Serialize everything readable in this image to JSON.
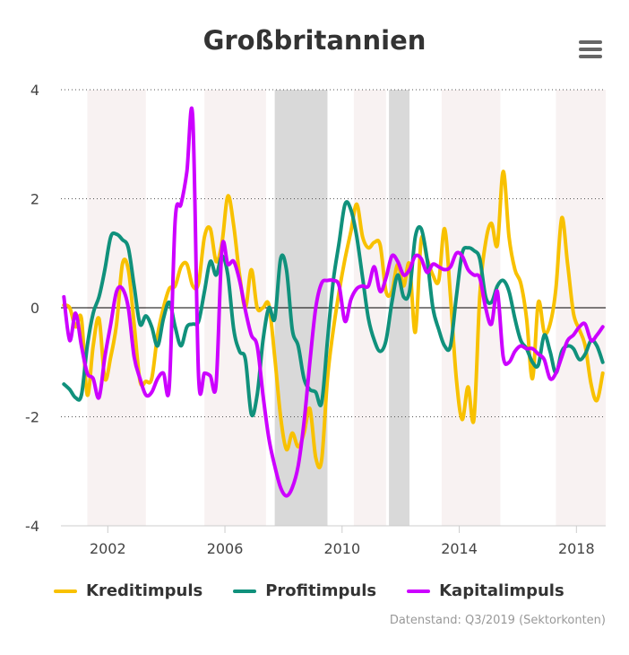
{
  "chart_data": {
    "type": "line",
    "title": "Großbritannien",
    "xlim": [
      2000.4,
      2019.0
    ],
    "ylim": [
      -4,
      4
    ],
    "x_ticks": [
      2002,
      2006,
      2010,
      2014,
      2018
    ],
    "y_ticks": [
      4,
      2,
      0,
      -2,
      -4
    ],
    "grid": "horizontal dotted",
    "legend": "bottom",
    "bands_light": [
      [
        2001.3,
        2003.3
      ],
      [
        2005.3,
        2007.4
      ],
      [
        2010.4,
        2011.5
      ],
      [
        2013.4,
        2015.4
      ],
      [
        2017.3,
        2019.0
      ]
    ],
    "bands_dark": [
      [
        2007.7,
        2009.5
      ],
      [
        2011.6,
        2012.3
      ]
    ],
    "series": [
      {
        "name": "Kreditimpuls",
        "color": "#f8c100",
        "points": [
          [
            2000.5,
            0.05
          ],
          [
            2000.7,
            0.0
          ],
          [
            2000.9,
            -0.35
          ],
          [
            2001.1,
            -0.2
          ],
          [
            2001.3,
            -1.6
          ],
          [
            2001.5,
            -0.7
          ],
          [
            2001.7,
            -0.2
          ],
          [
            2001.9,
            -1.3
          ],
          [
            2002.1,
            -0.9
          ],
          [
            2002.3,
            -0.3
          ],
          [
            2002.5,
            0.8
          ],
          [
            2002.7,
            0.7
          ],
          [
            2002.9,
            -0.3
          ],
          [
            2003.1,
            -1.35
          ],
          [
            2003.3,
            -1.35
          ],
          [
            2003.5,
            -1.3
          ],
          [
            2003.7,
            -0.5
          ],
          [
            2003.9,
            0.0
          ],
          [
            2004.1,
            0.35
          ],
          [
            2004.3,
            0.4
          ],
          [
            2004.5,
            0.75
          ],
          [
            2004.7,
            0.8
          ],
          [
            2004.9,
            0.4
          ],
          [
            2005.1,
            0.45
          ],
          [
            2005.3,
            1.3
          ],
          [
            2005.5,
            1.45
          ],
          [
            2005.7,
            0.85
          ],
          [
            2005.9,
            1.2
          ],
          [
            2006.1,
            2.05
          ],
          [
            2006.3,
            1.5
          ],
          [
            2006.5,
            0.6
          ],
          [
            2006.7,
            0.0
          ],
          [
            2006.9,
            0.7
          ],
          [
            2007.1,
            0.0
          ],
          [
            2007.3,
            0.0
          ],
          [
            2007.5,
            0.05
          ],
          [
            2007.7,
            -0.9
          ],
          [
            2007.9,
            -2.0
          ],
          [
            2008.1,
            -2.6
          ],
          [
            2008.3,
            -2.3
          ],
          [
            2008.5,
            -2.55
          ],
          [
            2008.7,
            -2.3
          ],
          [
            2008.9,
            -1.85
          ],
          [
            2009.1,
            -2.75
          ],
          [
            2009.3,
            -2.8
          ],
          [
            2009.5,
            -1.3
          ],
          [
            2009.7,
            -0.4
          ],
          [
            2009.9,
            0.3
          ],
          [
            2010.1,
            0.9
          ],
          [
            2010.3,
            1.4
          ],
          [
            2010.5,
            1.9
          ],
          [
            2010.7,
            1.3
          ],
          [
            2010.9,
            1.1
          ],
          [
            2011.1,
            1.2
          ],
          [
            2011.3,
            1.15
          ],
          [
            2011.5,
            0.3
          ],
          [
            2011.7,
            0.3
          ],
          [
            2011.9,
            0.8
          ],
          [
            2012.1,
            0.4
          ],
          [
            2012.3,
            0.8
          ],
          [
            2012.5,
            -0.45
          ],
          [
            2012.7,
            1.25
          ],
          [
            2012.9,
            0.9
          ],
          [
            2013.1,
            0.6
          ],
          [
            2013.3,
            0.5
          ],
          [
            2013.5,
            1.45
          ],
          [
            2013.7,
            0.2
          ],
          [
            2013.9,
            -1.3
          ],
          [
            2014.1,
            -2.05
          ],
          [
            2014.3,
            -1.45
          ],
          [
            2014.5,
            -2.05
          ],
          [
            2014.7,
            0.2
          ],
          [
            2014.9,
            1.2
          ],
          [
            2015.1,
            1.55
          ],
          [
            2015.3,
            1.15
          ],
          [
            2015.5,
            2.5
          ],
          [
            2015.7,
            1.3
          ],
          [
            2015.9,
            0.7
          ],
          [
            2016.1,
            0.45
          ],
          [
            2016.3,
            -0.2
          ],
          [
            2016.5,
            -1.3
          ],
          [
            2016.7,
            0.1
          ],
          [
            2016.9,
            -0.45
          ],
          [
            2017.1,
            -0.3
          ],
          [
            2017.3,
            0.35
          ],
          [
            2017.5,
            1.65
          ],
          [
            2017.7,
            0.8
          ],
          [
            2017.9,
            -0.1
          ],
          [
            2018.1,
            -0.4
          ],
          [
            2018.3,
            -0.7
          ],
          [
            2018.5,
            -1.4
          ],
          [
            2018.7,
            -1.7
          ],
          [
            2018.9,
            -1.2
          ]
        ]
      },
      {
        "name": "Profitimpuls",
        "color": "#10917c",
        "points": [
          [
            2000.5,
            -1.4
          ],
          [
            2000.7,
            -1.5
          ],
          [
            2000.9,
            -1.65
          ],
          [
            2001.1,
            -1.6
          ],
          [
            2001.3,
            -0.7
          ],
          [
            2001.5,
            -0.1
          ],
          [
            2001.7,
            0.2
          ],
          [
            2001.9,
            0.7
          ],
          [
            2002.1,
            1.3
          ],
          [
            2002.3,
            1.35
          ],
          [
            2002.5,
            1.25
          ],
          [
            2002.7,
            1.1
          ],
          [
            2002.9,
            0.4
          ],
          [
            2003.1,
            -0.3
          ],
          [
            2003.3,
            -0.15
          ],
          [
            2003.5,
            -0.35
          ],
          [
            2003.7,
            -0.7
          ],
          [
            2003.9,
            -0.2
          ],
          [
            2004.1,
            0.1
          ],
          [
            2004.3,
            -0.35
          ],
          [
            2004.5,
            -0.7
          ],
          [
            2004.7,
            -0.35
          ],
          [
            2004.9,
            -0.3
          ],
          [
            2005.1,
            -0.25
          ],
          [
            2005.3,
            0.3
          ],
          [
            2005.5,
            0.85
          ],
          [
            2005.7,
            0.6
          ],
          [
            2005.9,
            0.95
          ],
          [
            2006.1,
            0.6
          ],
          [
            2006.3,
            -0.4
          ],
          [
            2006.5,
            -0.8
          ],
          [
            2006.7,
            -0.95
          ],
          [
            2006.9,
            -1.95
          ],
          [
            2007.1,
            -1.6
          ],
          [
            2007.3,
            -0.6
          ],
          [
            2007.5,
            0.0
          ],
          [
            2007.7,
            -0.2
          ],
          [
            2007.9,
            0.9
          ],
          [
            2008.1,
            0.7
          ],
          [
            2008.3,
            -0.4
          ],
          [
            2008.5,
            -0.7
          ],
          [
            2008.7,
            -1.3
          ],
          [
            2008.9,
            -1.5
          ],
          [
            2009.1,
            -1.55
          ],
          [
            2009.3,
            -1.75
          ],
          [
            2009.5,
            -0.6
          ],
          [
            2009.7,
            0.5
          ],
          [
            2009.9,
            1.2
          ],
          [
            2010.1,
            1.9
          ],
          [
            2010.3,
            1.8
          ],
          [
            2010.5,
            1.3
          ],
          [
            2010.7,
            0.55
          ],
          [
            2010.9,
            -0.2
          ],
          [
            2011.1,
            -0.6
          ],
          [
            2011.3,
            -0.8
          ],
          [
            2011.5,
            -0.6
          ],
          [
            2011.7,
            0.1
          ],
          [
            2011.9,
            0.6
          ],
          [
            2012.1,
            0.2
          ],
          [
            2012.3,
            0.3
          ],
          [
            2012.5,
            1.3
          ],
          [
            2012.7,
            1.45
          ],
          [
            2012.9,
            0.9
          ],
          [
            2013.1,
            0.0
          ],
          [
            2013.3,
            -0.4
          ],
          [
            2013.5,
            -0.7
          ],
          [
            2013.7,
            -0.7
          ],
          [
            2013.9,
            0.2
          ],
          [
            2014.1,
            1.0
          ],
          [
            2014.3,
            1.1
          ],
          [
            2014.5,
            1.05
          ],
          [
            2014.7,
            0.9
          ],
          [
            2014.9,
            0.2
          ],
          [
            2015.1,
            0.1
          ],
          [
            2015.3,
            0.4
          ],
          [
            2015.5,
            0.5
          ],
          [
            2015.7,
            0.3
          ],
          [
            2015.9,
            -0.2
          ],
          [
            2016.1,
            -0.6
          ],
          [
            2016.3,
            -0.75
          ],
          [
            2016.5,
            -1.0
          ],
          [
            2016.7,
            -1.05
          ],
          [
            2016.9,
            -0.5
          ],
          [
            2017.1,
            -0.8
          ],
          [
            2017.3,
            -1.2
          ],
          [
            2017.5,
            -0.8
          ],
          [
            2017.7,
            -0.7
          ],
          [
            2017.9,
            -0.75
          ],
          [
            2018.1,
            -0.95
          ],
          [
            2018.3,
            -0.85
          ],
          [
            2018.5,
            -0.6
          ],
          [
            2018.7,
            -0.7
          ],
          [
            2018.9,
            -1.0
          ]
        ]
      },
      {
        "name": "Kapitalimpuls",
        "color": "#cc00ff",
        "points": [
          [
            2000.5,
            0.2
          ],
          [
            2000.7,
            -0.6
          ],
          [
            2000.9,
            -0.1
          ],
          [
            2001.1,
            -0.7
          ],
          [
            2001.3,
            -1.2
          ],
          [
            2001.5,
            -1.3
          ],
          [
            2001.7,
            -1.65
          ],
          [
            2001.9,
            -0.9
          ],
          [
            2002.1,
            -0.3
          ],
          [
            2002.3,
            0.3
          ],
          [
            2002.5,
            0.35
          ],
          [
            2002.7,
            0.0
          ],
          [
            2002.9,
            -0.9
          ],
          [
            2003.1,
            -1.3
          ],
          [
            2003.3,
            -1.6
          ],
          [
            2003.5,
            -1.55
          ],
          [
            2003.7,
            -1.3
          ],
          [
            2003.9,
            -1.2
          ],
          [
            2004.1,
            -1.45
          ],
          [
            2004.3,
            1.6
          ],
          [
            2004.5,
            1.9
          ],
          [
            2004.7,
            2.5
          ],
          [
            2004.9,
            3.5
          ],
          [
            2005.1,
            -1.25
          ],
          [
            2005.3,
            -1.2
          ],
          [
            2005.5,
            -1.25
          ],
          [
            2005.7,
            -1.4
          ],
          [
            2005.9,
            1.1
          ],
          [
            2006.1,
            0.8
          ],
          [
            2006.3,
            0.85
          ],
          [
            2006.5,
            0.5
          ],
          [
            2006.7,
            -0.05
          ],
          [
            2006.9,
            -0.5
          ],
          [
            2007.1,
            -0.7
          ],
          [
            2007.3,
            -1.6
          ],
          [
            2007.5,
            -2.4
          ],
          [
            2007.7,
            -2.9
          ],
          [
            2007.9,
            -3.3
          ],
          [
            2008.1,
            -3.45
          ],
          [
            2008.3,
            -3.3
          ],
          [
            2008.5,
            -2.9
          ],
          [
            2008.7,
            -2.1
          ],
          [
            2008.9,
            -1.0
          ],
          [
            2009.1,
            0.0
          ],
          [
            2009.3,
            0.45
          ],
          [
            2009.5,
            0.5
          ],
          [
            2009.7,
            0.5
          ],
          [
            2009.9,
            0.4
          ],
          [
            2010.1,
            -0.25
          ],
          [
            2010.3,
            0.15
          ],
          [
            2010.5,
            0.35
          ],
          [
            2010.7,
            0.4
          ],
          [
            2010.9,
            0.4
          ],
          [
            2011.1,
            0.75
          ],
          [
            2011.3,
            0.3
          ],
          [
            2011.5,
            0.55
          ],
          [
            2011.7,
            0.95
          ],
          [
            2011.9,
            0.85
          ],
          [
            2012.1,
            0.6
          ],
          [
            2012.3,
            0.7
          ],
          [
            2012.5,
            0.95
          ],
          [
            2012.7,
            0.9
          ],
          [
            2012.9,
            0.65
          ],
          [
            2013.1,
            0.8
          ],
          [
            2013.3,
            0.75
          ],
          [
            2013.5,
            0.7
          ],
          [
            2013.7,
            0.75
          ],
          [
            2013.9,
            1.0
          ],
          [
            2014.1,
            0.95
          ],
          [
            2014.3,
            0.7
          ],
          [
            2014.5,
            0.6
          ],
          [
            2014.7,
            0.55
          ],
          [
            2014.9,
            0.0
          ],
          [
            2015.1,
            -0.3
          ],
          [
            2015.3,
            0.3
          ],
          [
            2015.5,
            -0.9
          ],
          [
            2015.7,
            -1.0
          ],
          [
            2015.9,
            -0.8
          ],
          [
            2016.1,
            -0.7
          ],
          [
            2016.3,
            -0.75
          ],
          [
            2016.5,
            -0.75
          ],
          [
            2016.7,
            -0.85
          ],
          [
            2016.9,
            -0.95
          ],
          [
            2017.1,
            -1.3
          ],
          [
            2017.3,
            -1.2
          ],
          [
            2017.5,
            -0.9
          ],
          [
            2017.7,
            -0.6
          ],
          [
            2017.9,
            -0.5
          ],
          [
            2018.1,
            -0.35
          ],
          [
            2018.3,
            -0.3
          ],
          [
            2018.5,
            -0.6
          ],
          [
            2018.7,
            -0.5
          ],
          [
            2018.9,
            -0.35
          ]
        ]
      }
    ]
  },
  "legend": {
    "items": [
      {
        "label": "Kreditimpuls",
        "color": "#f8c100"
      },
      {
        "label": "Profitimpuls",
        "color": "#10917c"
      },
      {
        "label": "Kapitalimpuls",
        "color": "#cc00ff"
      }
    ]
  },
  "credits": "Datenstand: Q3/2019 (Sektorkonten)",
  "menu": {
    "icon": "hamburger-menu-icon"
  }
}
